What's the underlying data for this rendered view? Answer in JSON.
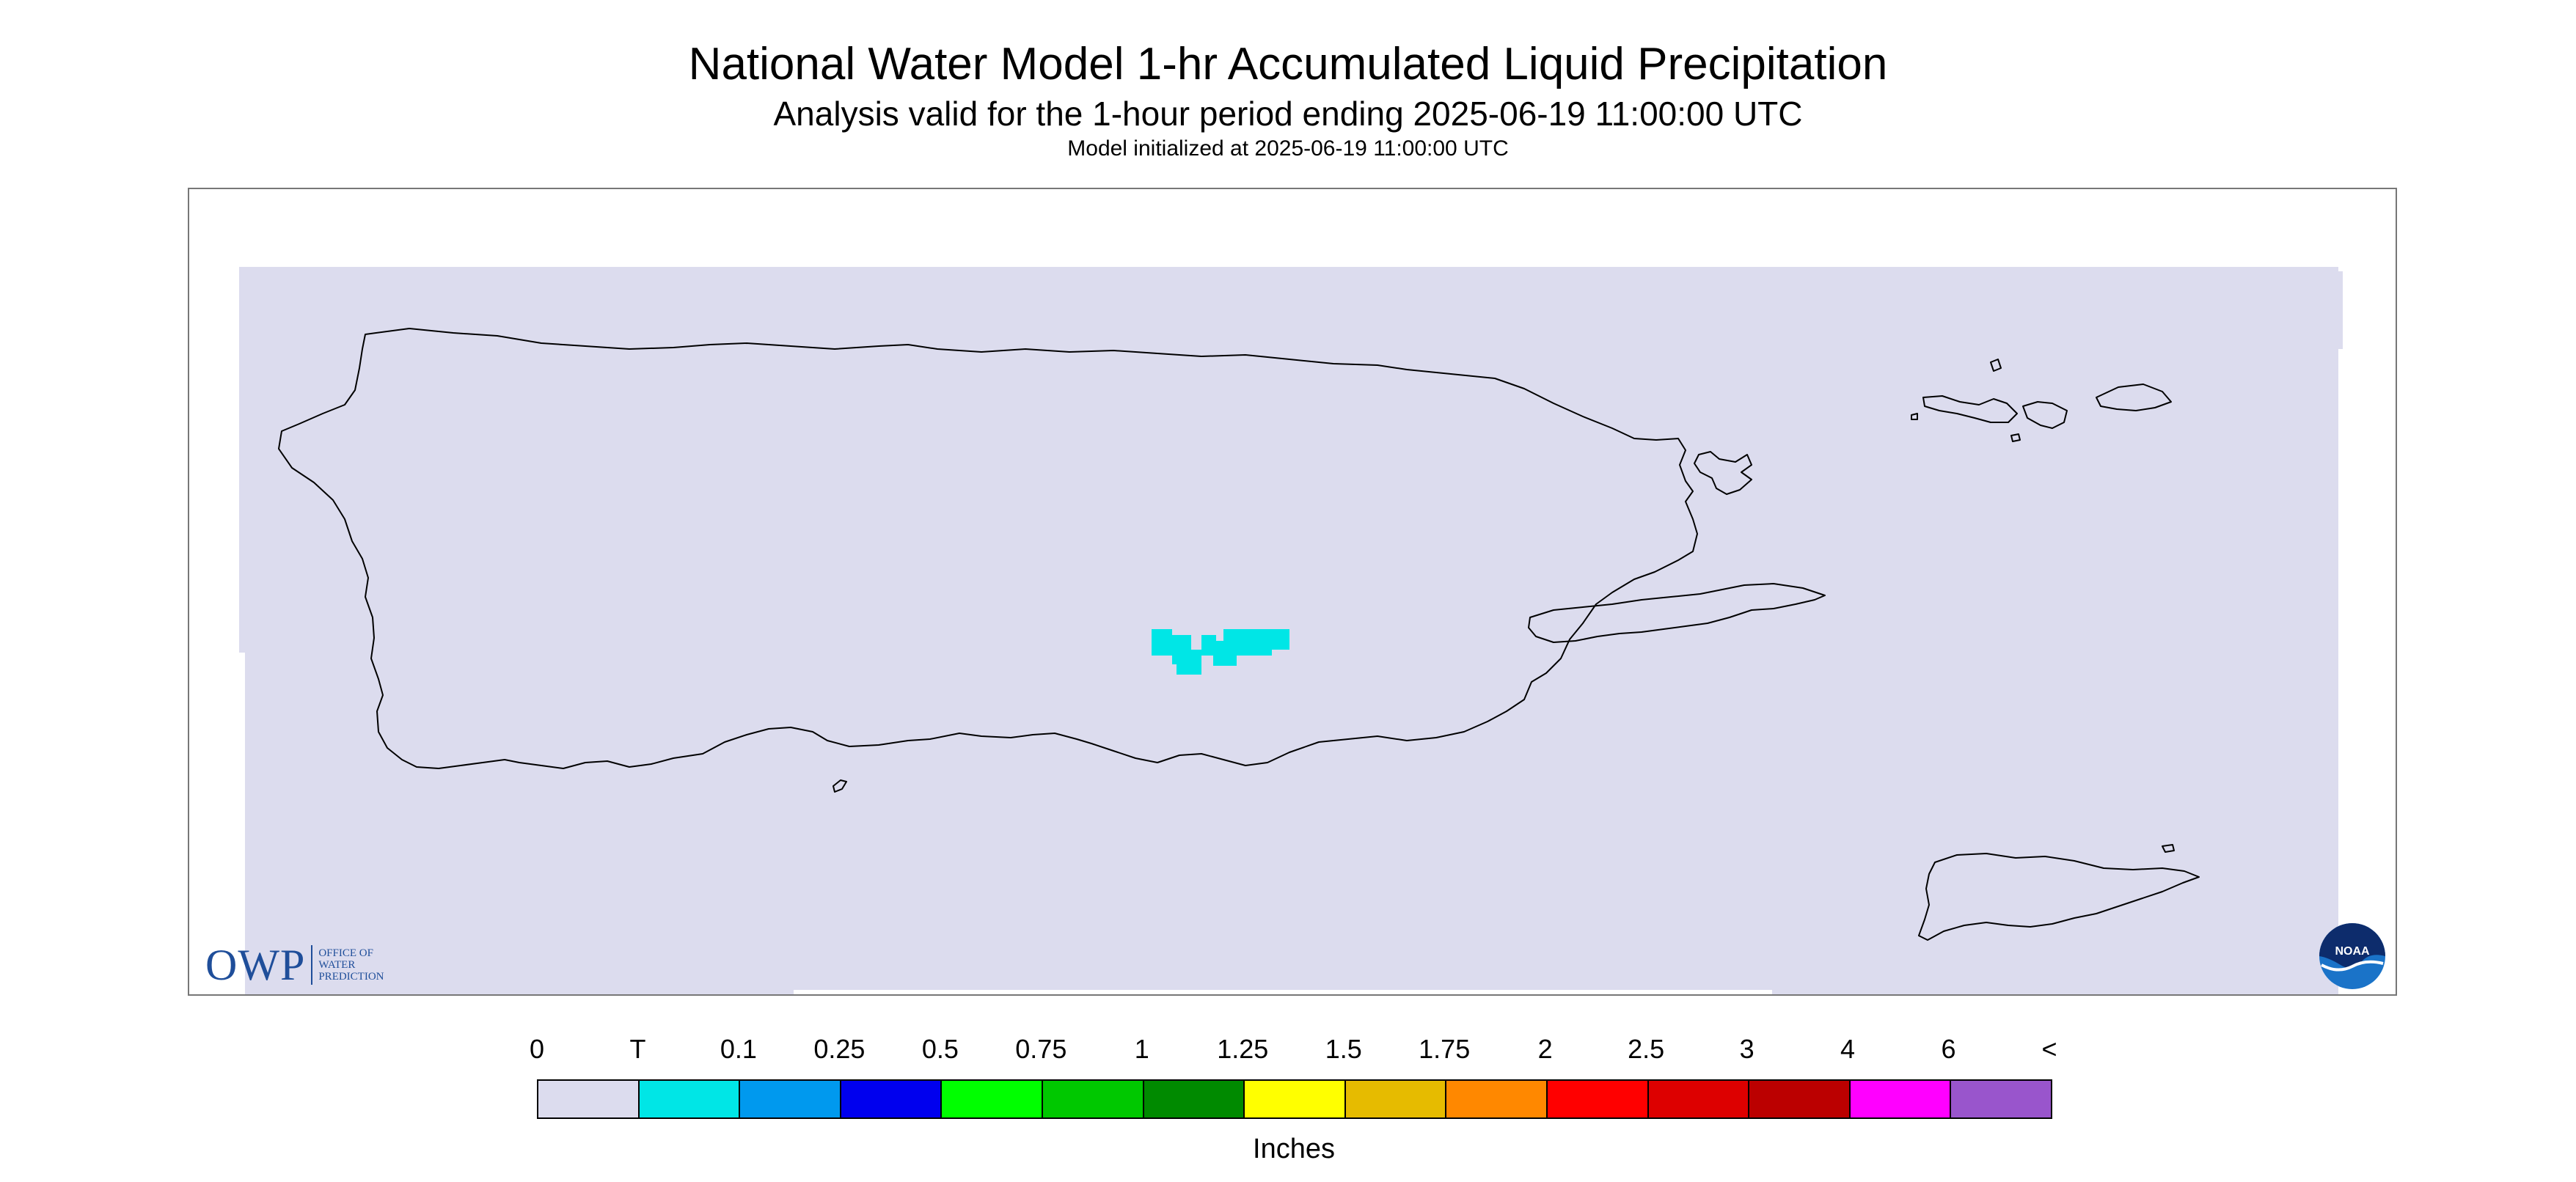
{
  "title": "National Water Model 1-hr Accumulated Liquid Precipitation",
  "subtitle": "Analysis valid for the 1-hour period ending 2025-06-19 11:00:00 UTC",
  "init_text": "Model initialized at 2025-06-19 11:00:00 UTC",
  "owp_logo": {
    "mark": "OWP",
    "line1": "Office of",
    "line2": "Water",
    "line3": "Prediction"
  },
  "noaa_logo": {
    "text": "NOAA"
  },
  "colors": {
    "background_field": "#dcdcee",
    "precip_trace": "#00e6e6",
    "coastline": "#000000"
  },
  "legend": {
    "labels": [
      "0",
      "T",
      "0.1",
      "0.25",
      "0.5",
      "0.75",
      "1",
      "1.25",
      "1.5",
      "1.75",
      "2",
      "2.5",
      "3",
      "4",
      "6",
      "<"
    ],
    "colors": [
      "#dcdcee",
      "#00e6e6",
      "#0099ee",
      "#0000ee",
      "#00ff00",
      "#00c800",
      "#008a00",
      "#ffff00",
      "#e6bb00",
      "#ff8800",
      "#ff0000",
      "#dd0000",
      "#bb0000",
      "#ff00ff",
      "#9955cc"
    ],
    "units": "Inches"
  }
}
